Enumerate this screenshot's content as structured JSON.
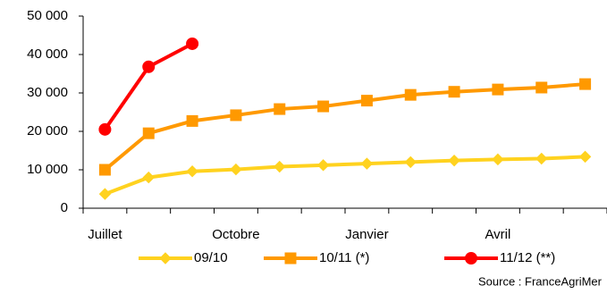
{
  "chart_data": {
    "type": "line",
    "categories": [
      "Juillet",
      null,
      null,
      "Octobre",
      null,
      null,
      "Janvier",
      null,
      null,
      "Avril",
      null,
      null
    ],
    "series": [
      {
        "name": "09/10",
        "color": "#ffd21f",
        "marker": "diamond",
        "values": [
          3700,
          8000,
          9600,
          10100,
          10800,
          11200,
          11600,
          12000,
          12400,
          12700,
          12900,
          13400
        ]
      },
      {
        "name": "10/11 (*)",
        "color": "#ff9900",
        "marker": "square",
        "values": [
          10000,
          19500,
          22700,
          24200,
          25800,
          26500,
          28000,
          29500,
          30300,
          30900,
          31400,
          32300
        ]
      },
      {
        "name": "11/12 (**)",
        "color": "#ff0000",
        "marker": "circle",
        "values": [
          20500,
          36800,
          42800,
          null,
          null,
          null,
          null,
          null,
          null,
          null,
          null,
          null
        ]
      }
    ],
    "ylim": [
      0,
      50000
    ],
    "yticks": [
      0,
      {
        "value": 10000,
        "label": "10 000"
      },
      {
        "value": 20000,
        "label": "20 000"
      },
      {
        "value": 30000,
        "label": "30 000"
      },
      {
        "value": 40000,
        "label": "40 000"
      },
      {
        "value": 50000,
        "label": "50 000"
      }
    ],
    "grid": false,
    "source": "Source : FranceAgriMer"
  }
}
